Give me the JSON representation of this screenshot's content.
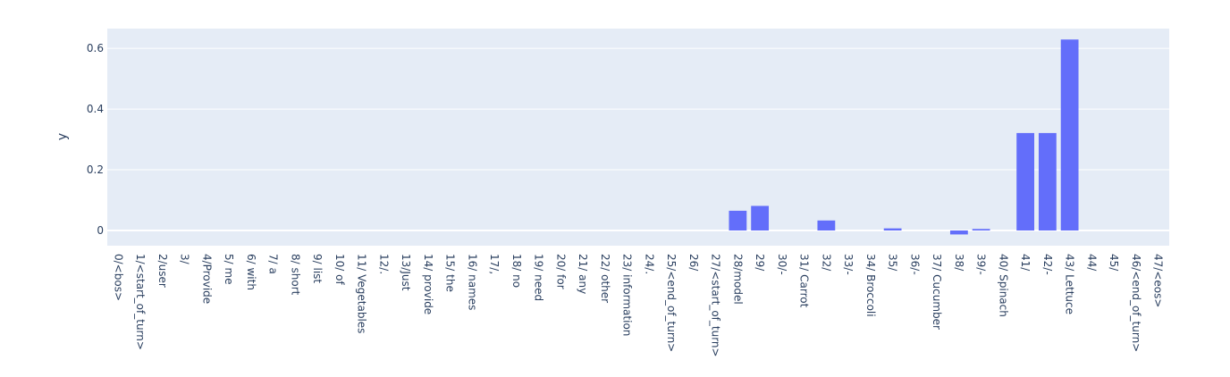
{
  "chart_data": {
    "type": "bar",
    "ylabel": "y",
    "xlabel": "",
    "ylim": [
      -0.05,
      0.665
    ],
    "y_ticks": [
      {
        "value": 0,
        "label": "0"
      },
      {
        "value": 0.2,
        "label": "0.2"
      },
      {
        "value": 0.4,
        "label": "0.4"
      },
      {
        "value": 0.6,
        "label": "0.6"
      }
    ],
    "grid": true,
    "bar_color": "#636efa",
    "plot_bg": "#e5ecf6",
    "categories": [
      "0/<bos>",
      "1/<start_of_turn>",
      "2/user",
      "3/",
      "4/Provide",
      "5/ me",
      "6/ with",
      "7/ a",
      "8/ short",
      "9/ list",
      "10/ of",
      "11/ Vegetables",
      "12/.",
      "13/Just",
      "14/ provide",
      "15/ the",
      "16/ names",
      "17/,",
      "18/ no",
      "19/ need",
      "20/ for",
      "21/ any",
      "22/ other",
      "23/ information",
      "24/.",
      "25/<end_of_turn>",
      "26/",
      "27/<start_of_turn>",
      "28/model",
      "29/",
      "30/-",
      "31/ Carrot",
      "32/",
      "33/-",
      "34/ Broccoli",
      "35/",
      "36/-",
      "37/ Cucumber",
      "38/",
      "39/-",
      "40/ Spinach",
      "41/",
      "42/-",
      "43/ Lettuce",
      "44/",
      "45/",
      "46/<end_of_turn>",
      "47/<eos>"
    ],
    "values": [
      0,
      0,
      0,
      0,
      0,
      0,
      0,
      0,
      0,
      0,
      0,
      0,
      0,
      0,
      0,
      0,
      0,
      0,
      0,
      0,
      0,
      0,
      0,
      0,
      0,
      0,
      0,
      0,
      0.065,
      0.081,
      0,
      0,
      0.033,
      0,
      0,
      0.007,
      0,
      0,
      -0.013,
      0.005,
      0,
      0.321,
      0.321,
      0.629,
      0,
      0,
      0,
      0
    ]
  }
}
